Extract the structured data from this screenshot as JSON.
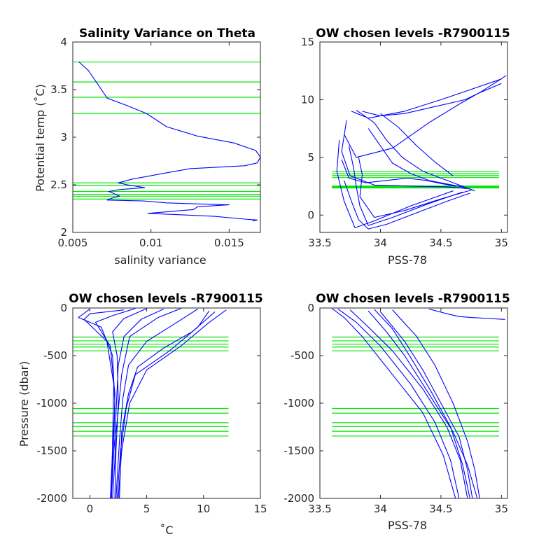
{
  "colors": {
    "data": "#0000ff",
    "levels": "#00e600",
    "axes": "#262626"
  },
  "chart_data": [
    {
      "type": "line",
      "title": "Salinity Variance on Theta",
      "xlabel": "salinity variance",
      "ylabel": "Potential temp (˚C)",
      "xlim": [
        0.005,
        0.017
      ],
      "ylim": [
        2,
        4
      ],
      "xticks": [
        {
          "v": 0.005,
          "label": "0.005"
        },
        {
          "v": 0.01,
          "label": "0.01"
        },
        {
          "v": 0.015,
          "label": "0.015"
        }
      ],
      "yticks": [
        {
          "v": 2,
          "label": "2"
        },
        {
          "v": 2.5,
          "label": "2.5"
        },
        {
          "v": 3,
          "label": "3"
        },
        {
          "v": 3.5,
          "label": "3.5"
        },
        {
          "v": 4,
          "label": "4"
        }
      ],
      "levels": [
        3.79,
        3.58,
        3.42,
        3.25,
        2.52,
        2.49,
        2.43,
        2.4,
        2.38,
        2.35
      ],
      "series": [
        {
          "x": [
            0.0054,
            0.006,
            0.0065,
            0.0072,
            0.0085,
            0.0097,
            0.011,
            0.013,
            0.0153,
            0.0167,
            0.017,
            0.0168,
            0.016,
            0.0125,
            0.0108,
            0.0095,
            0.0088,
            0.0079,
            0.0085,
            0.0096,
            0.008,
            0.0073,
            0.0076,
            0.008,
            0.0075,
            0.0072,
            0.0095,
            0.011,
            0.0128,
            0.015,
            0.013,
            0.0127,
            0.0098,
            0.014,
            0.016,
            0.0168,
            0.0165
          ],
          "y": [
            3.79,
            3.7,
            3.58,
            3.41,
            3.33,
            3.25,
            3.11,
            3.01,
            2.94,
            2.86,
            2.79,
            2.73,
            2.7,
            2.67,
            2.62,
            2.58,
            2.56,
            2.52,
            2.5,
            2.47,
            2.45,
            2.43,
            2.41,
            2.38,
            2.36,
            2.34,
            2.33,
            2.31,
            2.3,
            2.29,
            2.27,
            2.24,
            2.2,
            2.17,
            2.14,
            2.13,
            2.12
          ]
        }
      ]
    },
    {
      "type": "line",
      "title": "OW chosen levels -R7900115",
      "xlabel": "PSS-78",
      "ylabel": "",
      "xlim": [
        33.5,
        35.05
      ],
      "ylim": [
        -1.5,
        15
      ],
      "xticks": [
        {
          "v": 33.5,
          "label": "33.5"
        },
        {
          "v": 34,
          "label": "34"
        },
        {
          "v": 34.5,
          "label": "34.5"
        },
        {
          "v": 35,
          "label": "35"
        }
      ],
      "yticks": [
        {
          "v": 0,
          "label": "0"
        },
        {
          "v": 5,
          "label": "5"
        },
        {
          "v": 10,
          "label": "10"
        },
        {
          "v": 15,
          "label": "15"
        }
      ],
      "levels": [
        3.79,
        3.58,
        3.42,
        3.25,
        2.52,
        2.49,
        2.43,
        2.4,
        2.38,
        2.35
      ],
      "level_range": [
        33.6,
        34.98
      ],
      "series": [
        {
          "x": [
            33.72,
            33.68,
            33.75,
            33.95,
            34.3,
            34.55,
            34.72
          ],
          "y": [
            8.2,
            5.5,
            3.4,
            2.6,
            2.5,
            2.45,
            2.3
          ]
        },
        {
          "x": [
            33.7,
            33.8,
            34.1,
            34.4,
            34.65,
            34.85,
            35.04
          ],
          "y": [
            7.0,
            5.0,
            5.8,
            8.0,
            9.6,
            10.8,
            12.1
          ]
        },
        {
          "x": [
            33.76,
            33.9,
            34.2,
            34.5,
            34.78,
            35.0
          ],
          "y": [
            9.0,
            8.4,
            9.0,
            10.0,
            11.0,
            11.8
          ]
        },
        {
          "x": [
            33.74,
            33.78,
            33.8,
            33.83,
            33.9,
            34.1,
            34.4,
            34.68
          ],
          "y": [
            6.0,
            4.0,
            2.5,
            0.8,
            -0.9,
            -0.2,
            1.0,
            2.0
          ]
        },
        {
          "x": [
            33.82,
            33.85,
            33.83,
            33.95,
            34.2,
            34.5,
            34.76
          ],
          "y": [
            5.0,
            3.5,
            1.6,
            -0.2,
            0.4,
            1.4,
            2.2
          ]
        },
        {
          "x": [
            33.66,
            33.64,
            33.7,
            33.79,
            33.95,
            34.25,
            34.6
          ],
          "y": [
            6.5,
            3.8,
            1.2,
            -1.1,
            -0.5,
            0.8,
            2.1
          ]
        },
        {
          "x": [
            33.9,
            34.0,
            34.1,
            34.25,
            34.4,
            34.55,
            34.7
          ],
          "y": [
            7.5,
            6.0,
            4.5,
            3.6,
            3.0,
            2.7,
            2.4
          ]
        },
        {
          "x": [
            34.0,
            34.15,
            34.3,
            34.45,
            34.6
          ],
          "y": [
            8.8,
            7.6,
            6.0,
            4.6,
            3.4
          ]
        },
        {
          "x": [
            33.8,
            33.95,
            34.05,
            34.18,
            34.35,
            34.5,
            34.78
          ],
          "y": [
            9.1,
            8.0,
            6.5,
            5.0,
            3.8,
            3.2,
            2.1
          ]
        },
        {
          "x": [
            33.68,
            33.74,
            33.88,
            34.05,
            34.22,
            34.38,
            34.52,
            34.62
          ],
          "y": [
            4.8,
            3.2,
            2.8,
            3.0,
            3.2,
            3.0,
            2.7,
            2.5
          ]
        },
        {
          "x": [
            33.85,
            33.92,
            34.0,
            34.2,
            34.45,
            34.7,
            34.82,
            35.0
          ],
          "y": [
            9.0,
            8.8,
            8.6,
            8.8,
            9.4,
            10.0,
            10.6,
            11.4
          ]
        },
        {
          "x": [
            33.7,
            33.76,
            33.82,
            33.9,
            34.05,
            34.3,
            34.55,
            34.74
          ],
          "y": [
            3.0,
            1.2,
            -0.4,
            -1.2,
            -0.8,
            0.2,
            1.2,
            1.9
          ]
        }
      ]
    },
    {
      "type": "line",
      "title": "OW chosen levels -R7900115",
      "xlabel": "˚C",
      "ylabel": "Pressure (dbar)",
      "xlim": [
        -1.5,
        15
      ],
      "ylim": [
        -2000,
        0
      ],
      "xticks": [
        {
          "v": 0,
          "label": "0"
        },
        {
          "v": 5,
          "label": "5"
        },
        {
          "v": 10,
          "label": "10"
        },
        {
          "v": 15,
          "label": "15"
        }
      ],
      "yticks": [
        {
          "v": 0,
          "label": "0"
        },
        {
          "v": -500,
          "label": "-500"
        },
        {
          "v": -1000,
          "label": "-1000"
        },
        {
          "v": -1500,
          "label": "-1500"
        },
        {
          "v": -2000,
          "label": "-2000"
        }
      ],
      "levels": [
        -305,
        -345,
        -380,
        -410,
        -450,
        -1055,
        -1105,
        -1205,
        -1245,
        -1295,
        -1345
      ],
      "level_range": [
        -1.5,
        12.2
      ],
      "series": [
        {
          "x": [
            8.0,
            6.0,
            3.5,
            2.8,
            2.4,
            2.0,
            1.9
          ],
          "y": [
            -5,
            -100,
            -300,
            -700,
            -1200,
            -1600,
            -2000
          ]
        },
        {
          "x": [
            12.0,
            10.5,
            8.0,
            5.0,
            3.5,
            2.8,
            2.5
          ],
          "y": [
            -20,
            -150,
            -400,
            -650,
            -1000,
            -1500,
            -2000
          ]
        },
        {
          "x": [
            10.5,
            9.5,
            7.0,
            4.0,
            3.2,
            2.7,
            2.4
          ],
          "y": [
            -30,
            -200,
            -450,
            -700,
            -1050,
            -1500,
            -2000
          ]
        },
        {
          "x": [
            0.0,
            -1.0,
            1.0,
            2.0,
            2.2,
            2.0,
            1.8
          ],
          "y": [
            -10,
            -100,
            -200,
            -500,
            -1000,
            -1500,
            -2000
          ]
        },
        {
          "x": [
            4.0,
            2.0,
            0.5,
            1.8,
            2.2,
            2.1,
            1.9
          ],
          "y": [
            -5,
            -80,
            -150,
            -400,
            -900,
            -1500,
            -2000
          ]
        },
        {
          "x": [
            6.5,
            4.5,
            3.0,
            2.5,
            2.3,
            2.2,
            2.0
          ],
          "y": [
            -10,
            -120,
            -300,
            -600,
            -1100,
            -1600,
            -2000
          ]
        },
        {
          "x": [
            9.5,
            7.0,
            5.0,
            3.4,
            2.9,
            2.6,
            2.3
          ],
          "y": [
            -10,
            -200,
            -350,
            -600,
            -950,
            -1400,
            -2000
          ]
        },
        {
          "x": [
            3.0,
            0.0,
            -0.5,
            1.5,
            2.1,
            2.0,
            1.9
          ],
          "y": [
            -20,
            -60,
            -120,
            -350,
            -800,
            -1400,
            -2000
          ]
        },
        {
          "x": [
            11.0,
            9.0,
            6.5,
            4.2,
            3.4,
            2.8,
            2.6
          ],
          "y": [
            -40,
            -250,
            -420,
            -620,
            -900,
            -1300,
            -2000
          ]
        },
        {
          "x": [
            5.0,
            3.0,
            2.0,
            2.4,
            2.5,
            2.3,
            2.2
          ],
          "y": [
            -5,
            -110,
            -250,
            -500,
            -1000,
            -1500,
            -2000
          ]
        }
      ]
    },
    {
      "type": "line",
      "title": "OW chosen levels -R7900115",
      "xlabel": "PSS-78",
      "ylabel": "",
      "xlim": [
        33.5,
        35.05
      ],
      "ylim": [
        -2000,
        0
      ],
      "xticks": [
        {
          "v": 33.5,
          "label": "33.5"
        },
        {
          "v": 34,
          "label": "34"
        },
        {
          "v": 34.5,
          "label": "34.5"
        },
        {
          "v": 35,
          "label": "35"
        }
      ],
      "yticks": [
        {
          "v": 0,
          "label": "0"
        },
        {
          "v": -500,
          "label": "-500"
        },
        {
          "v": -1000,
          "label": "-1000"
        },
        {
          "v": -1500,
          "label": "-1500"
        },
        {
          "v": -2000,
          "label": "-2000"
        }
      ],
      "levels": [
        -305,
        -345,
        -380,
        -410,
        -450,
        -1055,
        -1105,
        -1205,
        -1245,
        -1295,
        -1345
      ],
      "level_range": [
        33.6,
        34.98
      ],
      "series": [
        {
          "x": [
            33.65,
            33.8,
            34.0,
            34.25,
            34.45,
            34.58,
            34.65
          ],
          "y": [
            -10,
            -150,
            -400,
            -800,
            -1200,
            -1600,
            -2000
          ]
        },
        {
          "x": [
            33.75,
            33.9,
            34.1,
            34.35,
            34.55,
            34.66,
            34.72
          ],
          "y": [
            -20,
            -200,
            -450,
            -850,
            -1250,
            -1600,
            -2000
          ]
        },
        {
          "x": [
            33.9,
            34.05,
            34.2,
            34.4,
            34.6,
            34.72,
            34.8
          ],
          "y": [
            -30,
            -250,
            -500,
            -900,
            -1300,
            -1650,
            -2000
          ]
        },
        {
          "x": [
            34.1,
            34.3,
            34.45,
            34.6,
            34.72,
            34.78,
            34.82
          ],
          "y": [
            -20,
            -300,
            -600,
            -1000,
            -1400,
            -1700,
            -2000
          ]
        },
        {
          "x": [
            34.4,
            34.55,
            34.65,
            34.75,
            34.9,
            34.95,
            35.03
          ],
          "y": [
            -10,
            -60,
            -90,
            -100,
            -110,
            -115,
            -120
          ]
        },
        {
          "x": [
            33.6,
            33.7,
            33.85,
            34.1,
            34.35,
            34.52,
            34.62
          ],
          "y": [
            -5,
            -100,
            -300,
            -700,
            -1100,
            -1550,
            -2000
          ]
        },
        {
          "x": [
            34.0,
            34.2,
            34.35,
            34.5,
            34.65,
            34.72,
            34.76
          ],
          "y": [
            -40,
            -350,
            -650,
            -1000,
            -1350,
            -1700,
            -2000
          ]
        },
        {
          "x": [
            33.95,
            34.1,
            34.25,
            34.42,
            34.58,
            34.68,
            34.74
          ],
          "y": [
            -15,
            -220,
            -520,
            -880,
            -1250,
            -1650,
            -2000
          ]
        }
      ]
    }
  ]
}
